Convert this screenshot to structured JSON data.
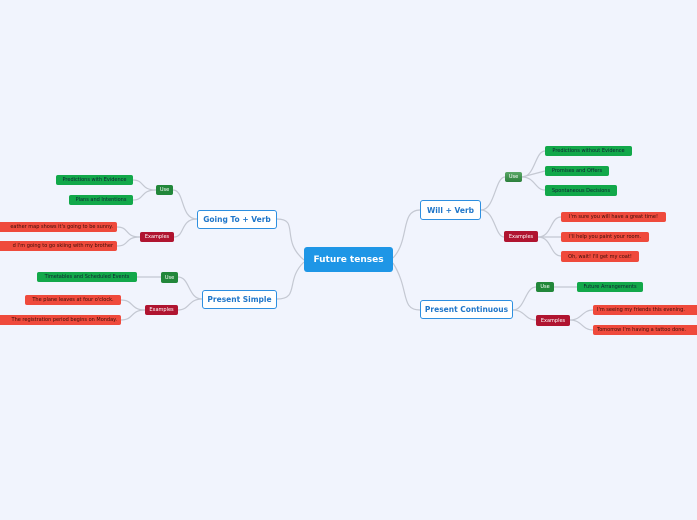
{
  "center": "Future tenses",
  "going": {
    "title": "Going To + Verb",
    "use": "Use",
    "examples": "Examples",
    "uses": [
      "Predictions with Evidence",
      "Plans and Intentions"
    ],
    "sentences": [
      "eather map shows it's going to be sunny.",
      "d I'm going to go skiing with my brother"
    ]
  },
  "simple": {
    "title": "Present Simple",
    "use": "Use",
    "examples": "Examples",
    "uses": [
      "Timetables and Scheduled Events"
    ],
    "sentences": [
      "The plane leaves at four o'clock.",
      "The registration period begins on Monday."
    ]
  },
  "will": {
    "title": "Will + Verb",
    "use": "Use",
    "examples": "Examples",
    "uses": [
      "Predictions without Evidence",
      "Promises and Offers",
      "Spontaneous Decisions"
    ],
    "sentences": [
      "I'm sure you will have a great time!",
      "I'll help you paint your room.",
      "Oh, wait! I'll get my coat!"
    ]
  },
  "continuous": {
    "title": "Present Continuous",
    "use": "Use",
    "examples": "Examples",
    "uses": [
      "Future Arrangements"
    ],
    "sentences": [
      "I'm seeing my friends this evening.",
      "Tomorrow I'm having a tattoo done."
    ]
  },
  "colors": {
    "center": "#1e96e6",
    "use": "#22873a",
    "examples": "#b01430",
    "use_leaf": "#12a84a",
    "example_leaf": "#ef4a3c"
  }
}
